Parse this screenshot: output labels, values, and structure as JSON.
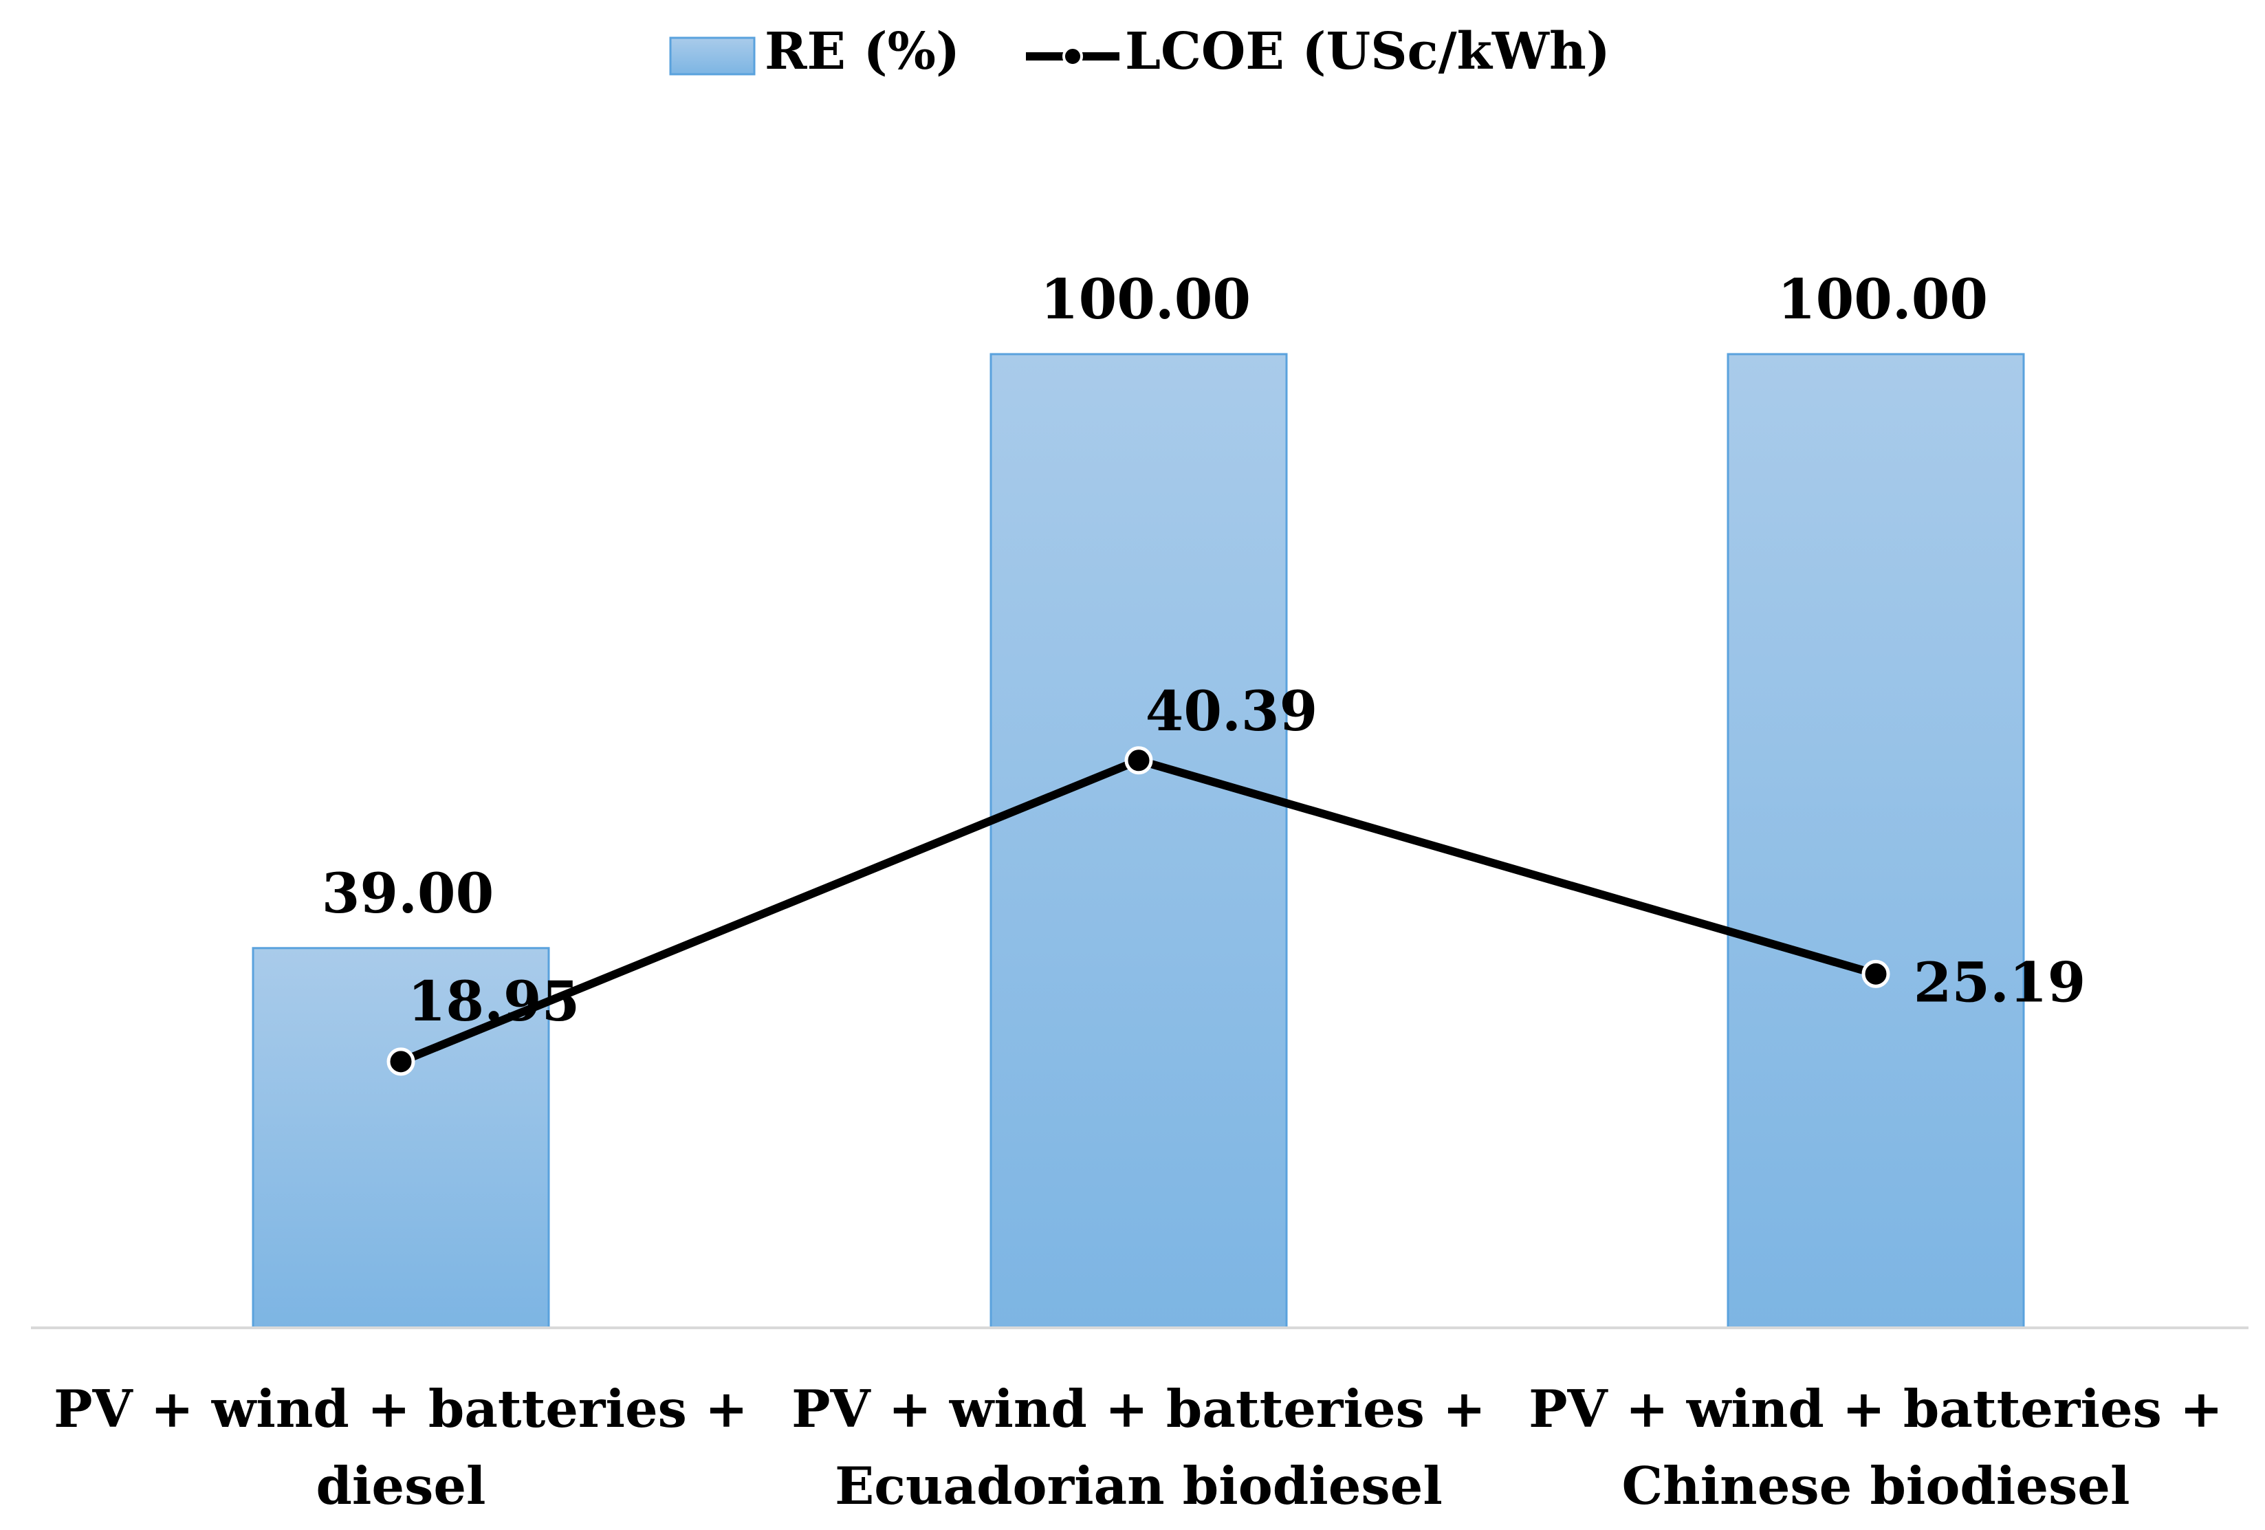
{
  "chart_data": {
    "type": "bar+line",
    "title": "",
    "legend_position": "top-center",
    "categories": [
      [
        "PV + wind + batteries +",
        "diesel"
      ],
      [
        "PV + wind + batteries +",
        "Ecuadorian biodiesel"
      ],
      [
        "PV + wind + batteries +",
        "Chinese biodiesel"
      ]
    ],
    "series": [
      {
        "name": "RE (%)",
        "kind": "bar",
        "values": [
          39.0,
          100.0,
          100.0
        ],
        "labels": [
          "39.00",
          "100.00",
          "100.00"
        ],
        "color_top": "#a9cbea",
        "color_bottom": "#7db5e3",
        "stroke": "#5aa2dd"
      },
      {
        "name": "LCOE (USc/kWh)",
        "kind": "line",
        "values": [
          18.95,
          40.39,
          25.19
        ],
        "labels": [
          "18.95",
          "40.39",
          "25.19"
        ],
        "color": "#000000"
      }
    ],
    "bar_axis_range": [
      0,
      100
    ],
    "line_axis_range": [
      0,
      70
    ],
    "xlabel": "",
    "ylabel": "",
    "grid": false
  }
}
